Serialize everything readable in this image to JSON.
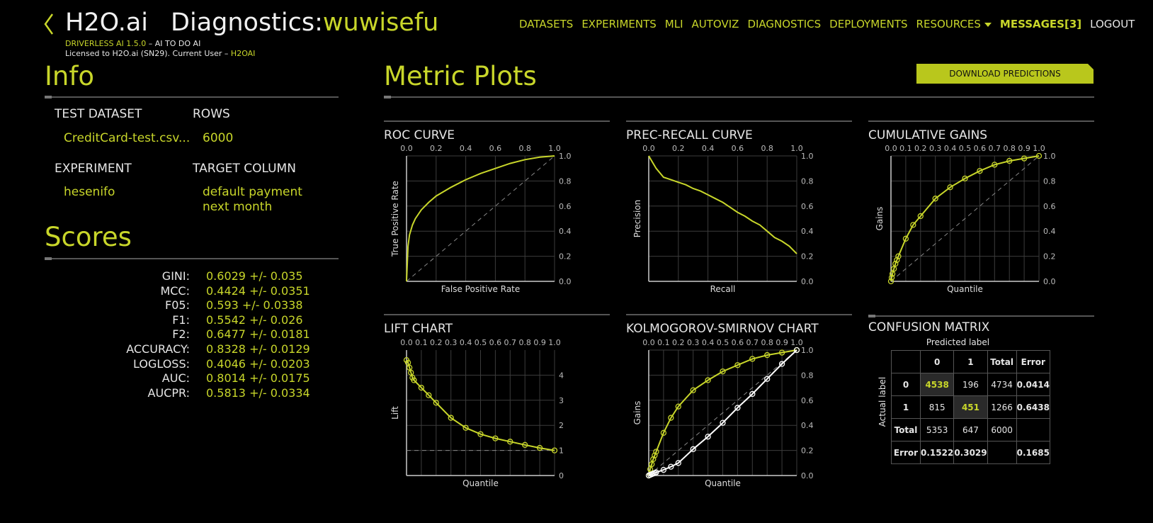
{
  "header": {
    "brand": "H2O.ai",
    "page_prefix": "Diagnostics:",
    "diagnostic_name": "wuwisefu",
    "version": "DRIVERLESS AI 1.5.0",
    "tagline": " – AI TO DO AI",
    "license": "Licensed to H2O.ai (SN29). Current User – ",
    "user": "H2OAI"
  },
  "nav": {
    "items": [
      "DATASETS",
      "EXPERIMENTS",
      "MLI",
      "AUTOVIZ",
      "DIAGNOSTICS",
      "DEPLOYMENTS",
      "RESOURCES"
    ],
    "messages": "MESSAGES[3]",
    "logout": "LOGOUT"
  },
  "info": {
    "title": "Info",
    "test_dataset_label": "TEST DATASET",
    "test_dataset": "CreditCard-test.csv...",
    "rows_label": "ROWS",
    "rows": "6000",
    "experiment_label": "EXPERIMENT",
    "experiment": "hesenifo",
    "target_label": "TARGET COLUMN",
    "target_line1": "default payment",
    "target_line2": "next month"
  },
  "scores": {
    "title": "Scores",
    "items": [
      {
        "name": "GINI:",
        "value": "0.6029 +/- 0.035"
      },
      {
        "name": "MCC:",
        "value": "0.4424 +/- 0.0351"
      },
      {
        "name": "F05:",
        "value": "0.593 +/- 0.0338"
      },
      {
        "name": "F1:",
        "value": "0.5542 +/- 0.026"
      },
      {
        "name": "F2:",
        "value": "0.6477 +/- 0.0181"
      },
      {
        "name": "ACCURACY:",
        "value": "0.8328 +/- 0.0129"
      },
      {
        "name": "LOGLOSS:",
        "value": "0.4046 +/- 0.0203"
      },
      {
        "name": "AUC:",
        "value": "0.8014 +/- 0.0175"
      },
      {
        "name": "AUCPR:",
        "value": "0.5813 +/- 0.0334"
      }
    ]
  },
  "metric_plots": {
    "title": "Metric Plots",
    "download_label": "DOWNLOAD PREDICTIONS"
  },
  "colors": {
    "accent": "#c8d62a",
    "background": "#000000",
    "grid": "#555555"
  },
  "chart_data": [
    {
      "id": "roc",
      "type": "line",
      "title": "ROC CURVE",
      "xlabel": "False Positive Rate",
      "ylabel": "True Positive Rate",
      "xlim": [
        0,
        1
      ],
      "ylim": [
        0,
        1
      ],
      "xticks": [
        "0.0",
        "0.2",
        "0.4",
        "0.6",
        "0.8",
        "1.0"
      ],
      "yticks": [
        "0.0",
        "0.2",
        "0.4",
        "0.6",
        "0.8",
        "1.0"
      ],
      "diagonal": true,
      "grid": true,
      "series": [
        {
          "x": [
            0,
            0.01,
            0.02,
            0.04,
            0.06,
            0.1,
            0.15,
            0.2,
            0.3,
            0.4,
            0.5,
            0.6,
            0.7,
            0.8,
            0.9,
            1.0
          ],
          "y": [
            0,
            0.28,
            0.37,
            0.45,
            0.5,
            0.57,
            0.63,
            0.68,
            0.75,
            0.81,
            0.86,
            0.9,
            0.94,
            0.97,
            0.99,
            1.0
          ],
          "markers": false
        }
      ]
    },
    {
      "id": "prec_recall",
      "type": "line",
      "title": "PREC-RECALL CURVE",
      "xlabel": "Recall",
      "ylabel": "Precision",
      "xlim": [
        0,
        1
      ],
      "ylim": [
        0,
        1
      ],
      "xticks": [
        "0.0",
        "0.2",
        "0.4",
        "0.6",
        "0.8",
        "1.0"
      ],
      "yticks": [
        "0.0",
        "0.2",
        "0.4",
        "0.6",
        "0.8",
        "1.0"
      ],
      "diagonal": false,
      "grid": true,
      "series": [
        {
          "x": [
            0,
            0.02,
            0.05,
            0.1,
            0.15,
            0.2,
            0.25,
            0.3,
            0.35,
            0.4,
            0.45,
            0.5,
            0.55,
            0.6,
            0.65,
            0.7,
            0.75,
            0.8,
            0.85,
            0.9,
            0.95,
            1.0
          ],
          "y": [
            1.0,
            0.96,
            0.9,
            0.83,
            0.81,
            0.79,
            0.77,
            0.74,
            0.72,
            0.69,
            0.66,
            0.63,
            0.59,
            0.55,
            0.52,
            0.48,
            0.45,
            0.4,
            0.35,
            0.32,
            0.28,
            0.22
          ],
          "markers": false
        }
      ]
    },
    {
      "id": "gains",
      "type": "line",
      "title": "CUMULATIVE GAINS",
      "xlabel": "Quantile",
      "ylabel": "Gains",
      "xlim": [
        0,
        1
      ],
      "ylim": [
        0,
        1
      ],
      "xticks": [
        "0.0",
        "0.1",
        "0.2",
        "0.3",
        "0.4",
        "0.5",
        "0.6",
        "0.7",
        "0.8",
        "0.9",
        "1.0"
      ],
      "yticks": [
        "0.0",
        "0.2",
        "0.4",
        "0.6",
        "0.8",
        "1.0"
      ],
      "diagonal": true,
      "grid": true,
      "series": [
        {
          "x": [
            0,
            0.005,
            0.01,
            0.02,
            0.03,
            0.04,
            0.05,
            0.1,
            0.15,
            0.2,
            0.3,
            0.4,
            0.5,
            0.6,
            0.7,
            0.8,
            0.9,
            1.0
          ],
          "y": [
            0,
            0.03,
            0.06,
            0.1,
            0.14,
            0.17,
            0.2,
            0.34,
            0.45,
            0.52,
            0.66,
            0.75,
            0.82,
            0.88,
            0.93,
            0.96,
            0.98,
            1.0
          ],
          "markers": true
        }
      ]
    },
    {
      "id": "lift",
      "type": "line",
      "title": "LIFT CHART",
      "xlabel": "Quantile",
      "ylabel": "Lift",
      "xlim": [
        0,
        1
      ],
      "ylim": [
        0,
        5
      ],
      "xticks": [
        "0.0",
        "0.1",
        "0.2",
        "0.3",
        "0.4",
        "0.5",
        "0.6",
        "0.7",
        "0.8",
        "0.9",
        "1.0"
      ],
      "yticks": [
        "0",
        "1",
        "2",
        "3",
        "4"
      ],
      "baseline": 1,
      "grid": true,
      "series": [
        {
          "x": [
            0,
            0.01,
            0.02,
            0.03,
            0.04,
            0.05,
            0.1,
            0.15,
            0.2,
            0.3,
            0.4,
            0.5,
            0.6,
            0.7,
            0.8,
            0.9,
            1.0
          ],
          "y": [
            4.6,
            4.5,
            4.3,
            4.1,
            3.9,
            3.8,
            3.5,
            3.2,
            2.9,
            2.3,
            1.9,
            1.65,
            1.48,
            1.35,
            1.22,
            1.1,
            1.0
          ],
          "markers": true
        }
      ]
    },
    {
      "id": "ks",
      "type": "line",
      "title": "KOLMOGOROV-SMIRNOV CHART",
      "xlabel": "Quantile",
      "ylabel": "Gains",
      "xlim": [
        0,
        1
      ],
      "ylim": [
        0,
        1
      ],
      "xticks": [
        "0.0",
        "0.1",
        "0.2",
        "0.3",
        "0.4",
        "0.5",
        "0.6",
        "0.7",
        "0.8",
        "0.9",
        "1.0"
      ],
      "yticks": [
        "0.0",
        "0.2",
        "0.4",
        "0.6",
        "0.8",
        "1.0"
      ],
      "diagonal": true,
      "grid": true,
      "series": [
        {
          "x": [
            0,
            0.01,
            0.02,
            0.03,
            0.04,
            0.05,
            0.1,
            0.15,
            0.2,
            0.3,
            0.4,
            0.5,
            0.6,
            0.7,
            0.8,
            0.9,
            1.0
          ],
          "y": [
            0,
            0.05,
            0.09,
            0.13,
            0.16,
            0.19,
            0.34,
            0.46,
            0.55,
            0.68,
            0.76,
            0.83,
            0.88,
            0.93,
            0.96,
            0.98,
            1.0
          ],
          "markers": true,
          "color": "accent"
        },
        {
          "x": [
            0,
            0.01,
            0.02,
            0.03,
            0.04,
            0.05,
            0.1,
            0.15,
            0.2,
            0.3,
            0.4,
            0.5,
            0.6,
            0.7,
            0.8,
            0.9,
            1.0
          ],
          "y": [
            0,
            0.005,
            0.01,
            0.015,
            0.02,
            0.025,
            0.045,
            0.07,
            0.1,
            0.21,
            0.31,
            0.42,
            0.54,
            0.65,
            0.77,
            0.89,
            1.0
          ],
          "markers": true,
          "color": "white"
        }
      ]
    }
  ],
  "confusion_matrix": {
    "title": "CONFUSION MATRIX",
    "predicted_label": "Predicted label",
    "actual_label": "Actual label",
    "header": [
      "",
      "0",
      "1",
      "Total",
      "Error"
    ],
    "rows": [
      [
        "0",
        "4538",
        "196",
        "4734",
        "0.0414"
      ],
      [
        "1",
        "815",
        "451",
        "1266",
        "0.6438"
      ],
      [
        "Total",
        "5353",
        "647",
        "6000",
        ""
      ],
      [
        "Error",
        "0.1522",
        "0.3029",
        "",
        "0.1685"
      ]
    ]
  }
}
